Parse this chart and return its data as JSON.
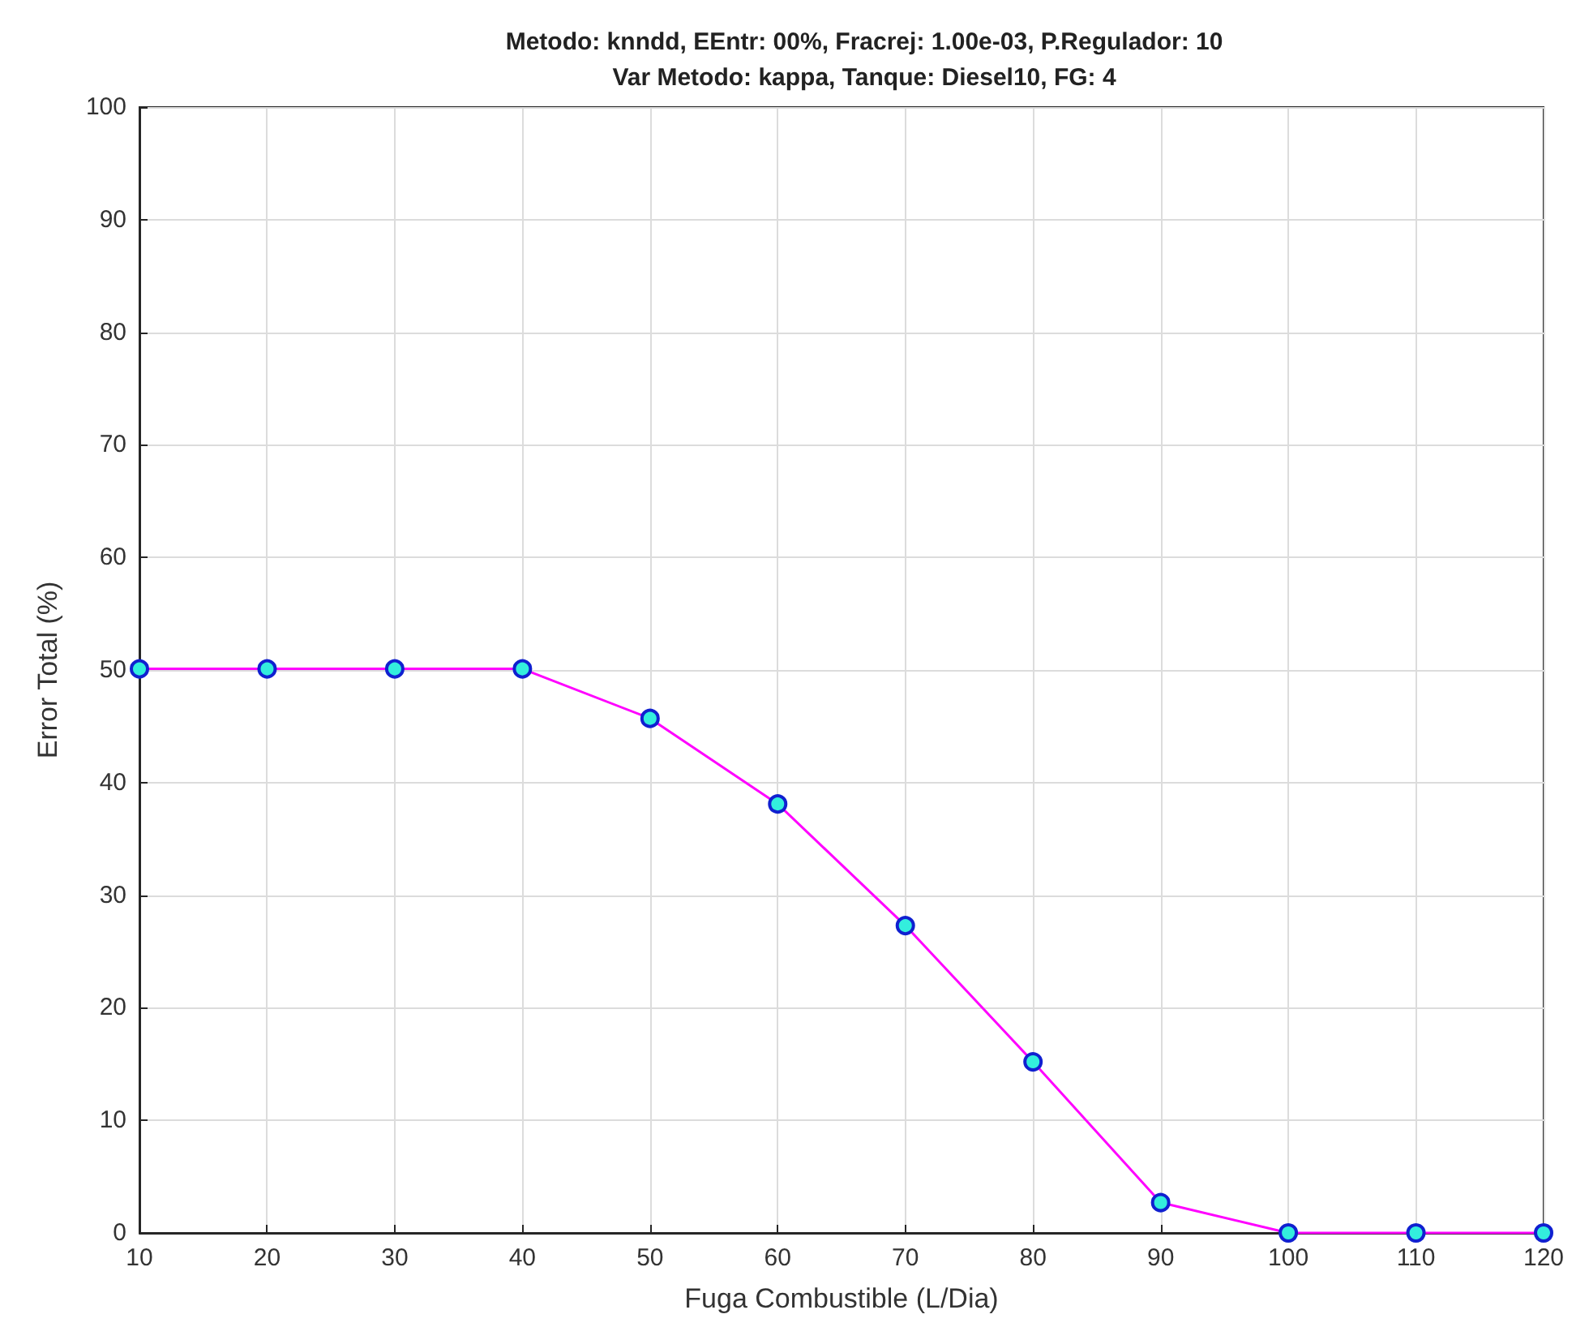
{
  "chart_data": {
    "type": "line",
    "title": "Metodo: knndd, EEntr: 00%, Fracrej: 1.00e-03, P.Regulador: 10\nVar Metodo: kappa, Tanque: Diesel10, FG: 4",
    "xlabel": "Fuga Combustible (L/Dia)",
    "ylabel": "Error Total (%)",
    "x": [
      10,
      20,
      30,
      40,
      50,
      60,
      70,
      80,
      90,
      100,
      110,
      120
    ],
    "series": [
      {
        "color": "#ff00ff",
        "values": [
          50.1,
          50.1,
          50.1,
          50.1,
          45.7,
          38.1,
          27.3,
          15.2,
          2.7,
          0,
          0,
          0
        ]
      }
    ],
    "xlim": [
      10,
      120
    ],
    "xticks": [
      10,
      20,
      30,
      40,
      50,
      60,
      70,
      80,
      90,
      100,
      110,
      120
    ],
    "ylim": [
      0,
      100
    ],
    "yticks": [
      0,
      10,
      20,
      30,
      40,
      50,
      60,
      70,
      80,
      90,
      100
    ],
    "grid": true,
    "marker": "circle",
    "line_style": "solid"
  }
}
